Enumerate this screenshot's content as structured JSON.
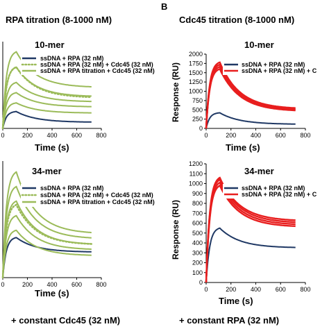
{
  "figure": {
    "panel_b_letter": "B",
    "left_title": "RPA titration (8-1000 nM)",
    "right_title": "Cdc45 titration (8-1000 nM)",
    "left_footer": "+ constant Cdc45 (32 nM)",
    "right_footer": "+ constant RPA (32 nM)"
  },
  "colors": {
    "navy": "#1f3864",
    "green": "#9bbb59",
    "red": "#e81e1e",
    "axis": "#000000"
  },
  "chart_data": [
    {
      "id": "A-10mer",
      "type": "line",
      "title": "10-mer",
      "xlabel": "Time (s)",
      "ylabel": "",
      "xlim": [
        0,
        800
      ],
      "xticks": [
        "0",
        "200",
        "400",
        "600",
        "800"
      ],
      "legend": "top",
      "series": [
        {
          "name": "ssDNA + RPA (32 nM)",
          "color": "#1f3864",
          "style": "solid",
          "kind": "single",
          "peak": 330,
          "plateau": 120
        },
        {
          "name": "ssDNA + RPA (32 nM) + Cdc45 (32 nM)",
          "color": "#9bbb59",
          "style": "dotted",
          "kind": "single",
          "peak": 1200,
          "plateau": 600
        },
        {
          "name": "ssDNA + RPA titration + Cdc45 (32 nM)",
          "color": "#9bbb59",
          "style": "solid",
          "kind": "family",
          "peaks": [
            500,
            700,
            900,
            1200,
            1500
          ],
          "plateaus": [
            300,
            420,
            520,
            620,
            800
          ]
        }
      ]
    },
    {
      "id": "A-34mer",
      "type": "line",
      "title": "34-mer",
      "xlabel": "Time (s)",
      "ylabel": "",
      "xlim": [
        0,
        800
      ],
      "xticks": [
        "0",
        "200",
        "400",
        "600",
        "800"
      ],
      "legend": "top",
      "series": [
        {
          "name": "ssDNA + RPA (32 nM)",
          "color": "#1f3864",
          "style": "solid",
          "kind": "single",
          "peak": 550,
          "plateau": 350
        },
        {
          "name": "ssDNA + RPA (32 nM) + Cdc45 (32 nM)",
          "color": "#9bbb59",
          "style": "dotted",
          "kind": "single",
          "peak": 1000,
          "plateau": 450
        },
        {
          "name": "ssDNA + RPA titration + Cdc45 (32 nM)",
          "color": "#9bbb59",
          "style": "solid",
          "kind": "family",
          "peaks": [
            650,
            850,
            1050,
            1250,
            1450
          ],
          "plateaus": [
            300,
            380,
            450,
            530,
            600
          ]
        }
      ]
    },
    {
      "id": "B-10mer",
      "type": "line",
      "title": "10-mer",
      "xlabel": "Time (s)",
      "ylabel": "Response (RU)",
      "xlim": [
        0,
        800
      ],
      "ylim": [
        0,
        2000
      ],
      "xticks": [
        "0",
        "200",
        "400",
        "600",
        "800"
      ],
      "yticks": [
        "0",
        "250",
        "500",
        "750",
        "1000",
        "1250",
        "1500",
        "1750",
        "2000"
      ],
      "legend": "top",
      "series": [
        {
          "name": "ssDNA + RPA (32 nM)",
          "color": "#1f3864",
          "style": "solid",
          "kind": "single",
          "peak": 420,
          "plateau": 110
        },
        {
          "name": "ssDNA + RPA (32 nM) + C",
          "color": "#e81e1e",
          "style": "solid",
          "kind": "family",
          "peaks": [
            1600,
            1660,
            1720,
            1780
          ],
          "plateaus": [
            460,
            480,
            500,
            520
          ]
        }
      ]
    },
    {
      "id": "B-34mer",
      "type": "line",
      "title": "34-mer",
      "xlabel": "Time (s)",
      "ylabel": "Response (RU)",
      "xlim": [
        0,
        800
      ],
      "ylim": [
        0,
        1200
      ],
      "xticks": [
        "0",
        "200",
        "400",
        "600",
        "800"
      ],
      "yticks": [
        "0",
        "100",
        "200",
        "300",
        "400",
        "500",
        "600",
        "700",
        "800",
        "900",
        "1000",
        "1100",
        "1200"
      ],
      "legend": "top",
      "series": [
        {
          "name": "ssDNA + RPA (32 nM)",
          "color": "#1f3864",
          "style": "solid",
          "kind": "single",
          "peak": 550,
          "plateau": 350
        },
        {
          "name": "ssDNA + RPA (32 nM) + C",
          "color": "#e81e1e",
          "style": "solid",
          "kind": "family",
          "peaks": [
            980,
            1010,
            1040,
            1060
          ],
          "plateaus": [
            560,
            580,
            600,
            620
          ]
        }
      ]
    }
  ]
}
